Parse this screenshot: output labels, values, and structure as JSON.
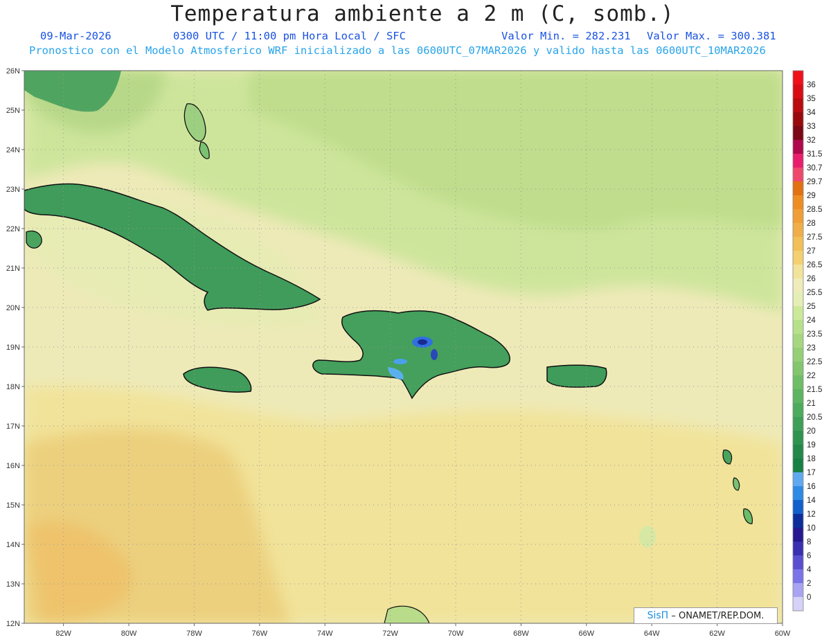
{
  "header": {
    "title": "Temperatura ambiente a 2 m (C, somb.)",
    "date": "09-Mar-2026",
    "time": "0300 UTC / 11:00 pm Hora Local / SFC",
    "min_label": "Valor Min. = 282.231",
    "max_label": "Valor Max. = 300.381",
    "model_line": "Pronostico con el Modelo Atmosferico WRF inicializado a las 0600UTC_07MAR2026 y valido hasta las  0600UTC_10MAR2026"
  },
  "map": {
    "lon_range": [
      -83.2,
      -60
    ],
    "lat_range": [
      12,
      26
    ],
    "lon_ticks": [
      "82W",
      "80W",
      "78W",
      "76W",
      "74W",
      "72W",
      "70W",
      "68W",
      "66W",
      "64W",
      "62W",
      "60W"
    ],
    "lon_values": [
      -82,
      -80,
      -78,
      -76,
      -74,
      -72,
      -70,
      -68,
      -66,
      -64,
      -62,
      -60
    ],
    "lat_ticks": [
      "12N",
      "13N",
      "14N",
      "15N",
      "16N",
      "17N",
      "18N",
      "19N",
      "20N",
      "21N",
      "22N",
      "23N",
      "24N",
      "25N",
      "26N"
    ],
    "lat_values": [
      12,
      13,
      14,
      15,
      16,
      17,
      18,
      19,
      20,
      21,
      22,
      23,
      24,
      25,
      26
    ],
    "grid": true,
    "ocean_color": "#ede9b9",
    "land_color": "#3f9e5c"
  },
  "colorbar": {
    "labels": [
      "36",
      "35",
      "34",
      "33",
      "32",
      "31.5",
      "30.7",
      "29.7",
      "29",
      "28.5",
      "28",
      "27.5",
      "27",
      "26.5",
      "26",
      "25.5",
      "25",
      "24",
      "23.5",
      "23",
      "22.5",
      "22",
      "21.5",
      "21",
      "20.5",
      "20",
      "19",
      "18",
      "17",
      "16",
      "14",
      "12",
      "10",
      "8",
      "6",
      "4",
      "2",
      "0"
    ],
    "colors": [
      "#f0101a",
      "#d80d14",
      "#b90c10",
      "#990a0c",
      "#7c0815",
      "#b0084c",
      "#e81e6c",
      "#f0486c",
      "#e27112",
      "#ee8e22",
      "#f09e38",
      "#f0ae4a",
      "#f2c058",
      "#f4d070",
      "#f2e39a",
      "#efebba",
      "#e6eeb7",
      "#cce99a",
      "#b7e08b",
      "#a6d780",
      "#95cf76",
      "#83c66e",
      "#6fbd67",
      "#5db462",
      "#4cab5c",
      "#3e9f56",
      "#2f9350",
      "#24884a",
      "#198044",
      "#60a8f0",
      "#2e8ae4",
      "#1160cc",
      "#0d2e9a",
      "#251890",
      "#3830b0",
      "#5a4ed0",
      "#7a74e8",
      "#a8a4f2",
      "#d4d2f8"
    ]
  },
  "credit": {
    "brand": "SisΠ",
    "text": "– ONAMET/REP.DOM."
  }
}
